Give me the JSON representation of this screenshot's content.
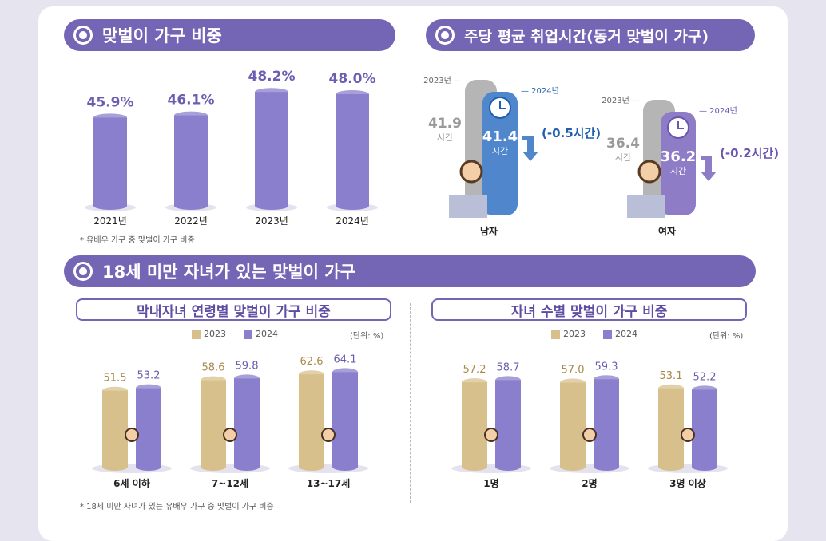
{
  "sections": {
    "share": {
      "title": "맞벌이 가구 비중",
      "note": "* 유배우 가구 중 맞벌이 가구 비중"
    },
    "hours": {
      "title": "주당 평균 취업시간(동거 맞벌이 가구)"
    },
    "children": {
      "title": "18세 미만 자녀가 있는 맞벌이 가구",
      "note": "* 18세 미만 자녀가 있는 유배우 가구 중 맞벌이 가구 비중"
    }
  },
  "colors": {
    "purple": "#8a7fcc",
    "gold": "#d7c08c",
    "blue": "#4f86cc",
    "grey": "#b5b5b5",
    "header": "#7565b5"
  },
  "chart_data": [
    {
      "type": "bar",
      "title": "맞벌이 가구 비중",
      "categories": [
        "2021년",
        "2022년",
        "2023년",
        "2024년"
      ],
      "values": [
        45.9,
        46.1,
        48.2,
        48.0
      ],
      "labels": [
        "45.9%",
        "46.1%",
        "48.2%",
        "48.0%"
      ],
      "unit": "%"
    },
    {
      "type": "bar",
      "title": "주당 평균 취업시간(동거 맞벌이 가구)",
      "categories": [
        "남자",
        "여자"
      ],
      "series": [
        {
          "name": "2023년",
          "values": [
            41.9,
            36.4
          ]
        },
        {
          "name": "2024년",
          "values": [
            41.4,
            36.2
          ]
        }
      ],
      "unit_label": "시간",
      "changes": [
        "(-0.5시간)",
        "(-0.2시간)"
      ]
    },
    {
      "type": "bar",
      "title": "막내자녀 연령별 맞벌이 가구 비중",
      "categories": [
        "6세 이하",
        "7~12세",
        "13~17세"
      ],
      "series": [
        {
          "name": "2023",
          "values": [
            51.5,
            58.6,
            62.6
          ]
        },
        {
          "name": "2024",
          "values": [
            53.2,
            59.8,
            64.1
          ]
        }
      ],
      "unit": "(단위: %)"
    },
    {
      "type": "bar",
      "title": "자녀 수별 맞벌이 가구 비중",
      "categories": [
        "1명",
        "2명",
        "3명 이상"
      ],
      "series": [
        {
          "name": "2023",
          "values": [
            57.2,
            57.0,
            53.1
          ]
        },
        {
          "name": "2024",
          "values": [
            58.7,
            59.3,
            52.2
          ]
        }
      ],
      "unit": "(단위: %)"
    }
  ]
}
